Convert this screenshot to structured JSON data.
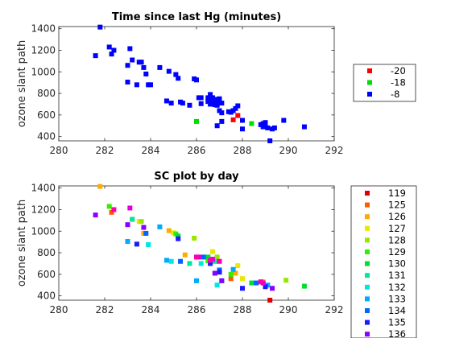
{
  "chart_data": [
    {
      "type": "scatter",
      "title": "Time since last Hg (minutes)",
      "xlabel": "",
      "ylabel": "ozone slant path",
      "xlim": [
        280,
        292
      ],
      "ylim": [
        360,
        1420
      ],
      "xticks": [
        280,
        282,
        284,
        286,
        288,
        290,
        292
      ],
      "yticks": [
        400,
        600,
        800,
        1000,
        1200,
        1400
      ],
      "legend_position": "right",
      "series": [
        {
          "name": "-20",
          "color": "#ff0000",
          "points": [
            [
              287.6,
              555
            ],
            [
              287.8,
              595
            ]
          ]
        },
        {
          "name": "-18",
          "color": "#00dd00",
          "points": [
            [
              286.0,
              540
            ],
            [
              288.4,
              520
            ]
          ]
        },
        {
          "name": "-8",
          "color": "#0000ff",
          "points": [
            [
              281.6,
              1150
            ],
            [
              281.8,
              1415
            ],
            [
              282.2,
              1230
            ],
            [
              282.3,
              1165
            ],
            [
              282.4,
              1200
            ],
            [
              283.0,
              1060
            ],
            [
              283.1,
              1215
            ],
            [
              283.2,
              1110
            ],
            [
              283.0,
              905
            ],
            [
              283.4,
              880
            ],
            [
              283.5,
              1090
            ],
            [
              283.6,
              1090
            ],
            [
              283.7,
              1040
            ],
            [
              283.8,
              980
            ],
            [
              283.9,
              880
            ],
            [
              284.0,
              880
            ],
            [
              284.4,
              1040
            ],
            [
              284.7,
              730
            ],
            [
              284.8,
              1005
            ],
            [
              284.9,
              710
            ],
            [
              285.1,
              975
            ],
            [
              285.2,
              940
            ],
            [
              285.3,
              720
            ],
            [
              285.4,
              710
            ],
            [
              285.7,
              690
            ],
            [
              285.9,
              935
            ],
            [
              286.0,
              925
            ],
            [
              286.1,
              760
            ],
            [
              286.2,
              760
            ],
            [
              286.2,
              705
            ],
            [
              286.5,
              760
            ],
            [
              286.5,
              725
            ],
            [
              286.6,
              790
            ],
            [
              286.6,
              700
            ],
            [
              286.7,
              760
            ],
            [
              286.7,
              720
            ],
            [
              286.8,
              695
            ],
            [
              286.9,
              745
            ],
            [
              286.9,
              690
            ],
            [
              286.9,
              710
            ],
            [
              287.0,
              740
            ],
            [
              287.0,
              750
            ],
            [
              287.1,
              710
            ],
            [
              287.0,
              640
            ],
            [
              287.1,
              620
            ],
            [
              286.9,
              500
            ],
            [
              287.1,
              540
            ],
            [
              287.4,
              630
            ],
            [
              287.5,
              625
            ],
            [
              287.6,
              640
            ],
            [
              287.7,
              660
            ],
            [
              287.8,
              685
            ],
            [
              288.0,
              550
            ],
            [
              288.0,
              470
            ],
            [
              288.8,
              510
            ],
            [
              288.9,
              520
            ],
            [
              288.9,
              490
            ],
            [
              289.0,
              530
            ],
            [
              289.0,
              505
            ],
            [
              289.1,
              480
            ],
            [
              289.2,
              360
            ],
            [
              289.3,
              470
            ],
            [
              289.4,
              480
            ],
            [
              289.8,
              550
            ],
            [
              290.7,
              490
            ]
          ]
        }
      ]
    },
    {
      "type": "scatter",
      "title": "SC plot by day",
      "xlabel": "",
      "ylabel": "ozone slant path",
      "xlim": [
        280,
        292
      ],
      "ylim": [
        360,
        1420
      ],
      "xticks": [
        280,
        282,
        284,
        286,
        288,
        290,
        292
      ],
      "yticks": [
        400,
        600,
        800,
        1000,
        1200,
        1400
      ],
      "legend_position": "right",
      "series": [
        {
          "name": "119",
          "color": "#e00000",
          "points": [
            [
              289.2,
              360
            ]
          ]
        },
        {
          "name": "125",
          "color": "#ff5a00",
          "points": [
            [
              282.3,
              1175
            ],
            [
              287.5,
              560
            ],
            [
              288.9,
              520
            ]
          ]
        },
        {
          "name": "126",
          "color": "#ffaa00",
          "points": [
            [
              281.8,
              1415
            ],
            [
              283.2,
              1110
            ],
            [
              283.7,
              980
            ],
            [
              284.8,
              1005
            ],
            [
              285.5,
              780
            ],
            [
              287.7,
              610
            ],
            [
              288.9,
              530
            ]
          ]
        },
        {
          "name": "127",
          "color": "#e8e800",
          "points": [
            [
              283.5,
              1090
            ],
            [
              285.0,
              985
            ],
            [
              286.7,
              810
            ],
            [
              287.8,
              680
            ],
            [
              288.0,
              560
            ]
          ]
        },
        {
          "name": "128",
          "color": "#99e600",
          "points": [
            [
              283.6,
              1090
            ],
            [
              285.9,
              935
            ],
            [
              286.9,
              760
            ],
            [
              289.9,
              545
            ]
          ]
        },
        {
          "name": "129",
          "color": "#33ee00",
          "points": [
            [
              282.2,
              1230
            ],
            [
              285.1,
              975
            ],
            [
              286.5,
              725
            ],
            [
              287.5,
              600
            ]
          ]
        },
        {
          "name": "130",
          "color": "#00dd33",
          "points": [
            [
              285.2,
              955
            ],
            [
              286.5,
              760
            ],
            [
              288.4,
              520
            ],
            [
              290.7,
              490
            ]
          ]
        },
        {
          "name": "131",
          "color": "#00e6a0",
          "points": [
            [
              283.2,
              1110
            ],
            [
              285.7,
              700
            ],
            [
              286.8,
              720
            ],
            [
              287.1,
              540
            ]
          ]
        },
        {
          "name": "132",
          "color": "#00e6e6",
          "points": [
            [
              283.9,
              875
            ],
            [
              284.9,
              720
            ],
            [
              286.2,
              700
            ],
            [
              286.9,
              500
            ]
          ]
        },
        {
          "name": "133",
          "color": "#00aaff",
          "points": [
            [
              283.0,
              905
            ],
            [
              284.4,
              1040
            ],
            [
              284.7,
              730
            ],
            [
              286.0,
              540
            ],
            [
              287.6,
              645
            ],
            [
              289.1,
              500
            ]
          ]
        },
        {
          "name": "134",
          "color": "#0066ff",
          "points": [
            [
              283.8,
              980
            ],
            [
              285.3,
              720
            ],
            [
              286.3,
              760
            ],
            [
              287.0,
              640
            ],
            [
              288.6,
              520
            ]
          ]
        },
        {
          "name": "135",
          "color": "#1a1aff",
          "points": [
            [
              283.4,
              880
            ],
            [
              285.2,
              930
            ],
            [
              286.6,
              700
            ],
            [
              287.0,
              620
            ],
            [
              288.0,
              470
            ],
            [
              289.0,
              485
            ]
          ]
        },
        {
          "name": "136",
          "color": "#8800ff",
          "points": [
            [
              281.6,
              1150
            ],
            [
              283.0,
              1060
            ],
            [
              283.7,
              1035
            ],
            [
              286.8,
              610
            ],
            [
              287.1,
              540
            ],
            [
              289.3,
              470
            ]
          ]
        },
        {
          "name": "",
          "color": "#dd00dd",
          "points": [
            [
              283.1,
              1215
            ],
            [
              286.1,
              760
            ],
            [
              286.7,
              740
            ],
            [
              288.9,
              520
            ]
          ]
        },
        {
          "name": "",
          "color": "#ff00aa",
          "points": [
            [
              282.4,
              1200
            ],
            [
              286.0,
              760
            ],
            [
              286.6,
              730
            ],
            [
              287.0,
              720
            ],
            [
              288.8,
              530
            ]
          ]
        }
      ]
    }
  ]
}
